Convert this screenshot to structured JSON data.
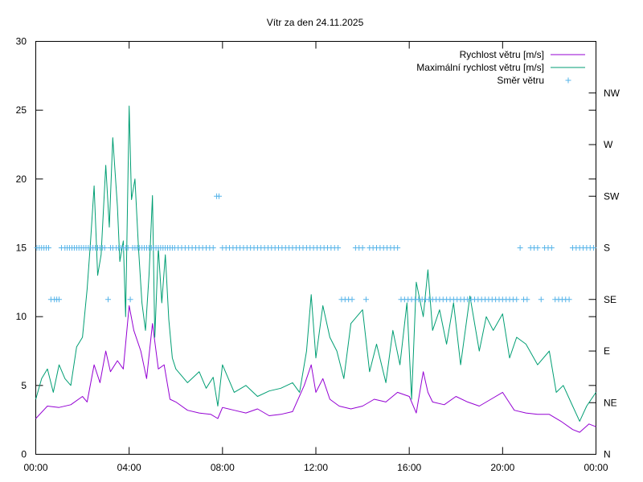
{
  "chart_data": {
    "type": "line",
    "title": "Vítr za den 24.11.2025",
    "x_ticks": [
      "00:00",
      "04:00",
      "08:00",
      "12:00",
      "16:00",
      "20:00",
      "00:00"
    ],
    "x_range_hours": [
      0,
      24
    ],
    "y_ticks": [
      "0",
      "5",
      "10",
      "15",
      "20",
      "25",
      "30"
    ],
    "ylim": [
      0,
      30
    ],
    "y2_ticks": [
      "N",
      "NE",
      "E",
      "SE",
      "S",
      "SW",
      "W",
      "NW"
    ],
    "y2lim": [
      0,
      8
    ],
    "grid": false,
    "legend_position": "top-right",
    "series": [
      {
        "name": "Rychlost větru [m/s]",
        "axis": "y",
        "style": "line",
        "color": "#9400d3",
        "x": [
          0,
          0.5,
          1,
          1.5,
          2,
          2.2,
          2.5,
          2.75,
          3,
          3.2,
          3.5,
          3.75,
          4,
          4.2,
          4.5,
          4.75,
          5,
          5.25,
          5.5,
          5.75,
          6,
          6.5,
          7,
          7.5,
          7.8,
          8,
          8.5,
          9,
          9.5,
          10,
          10.5,
          11,
          11.5,
          11.8,
          12,
          12.3,
          12.6,
          13,
          13.5,
          14,
          14.5,
          15,
          15.5,
          16,
          16.3,
          16.6,
          16.8,
          17,
          17.5,
          18,
          18.5,
          19,
          19.5,
          20,
          20.5,
          21,
          21.5,
          22,
          22.5,
          23,
          23.3,
          23.7,
          24
        ],
        "values": [
          2.6,
          3.5,
          3.4,
          3.6,
          4.2,
          3.8,
          6.5,
          5.2,
          7.5,
          6.0,
          6.8,
          6.2,
          10.8,
          9.0,
          7.5,
          5.5,
          9.5,
          6.2,
          6.5,
          4.0,
          3.8,
          3.2,
          3.0,
          2.9,
          2.6,
          3.4,
          3.2,
          3.0,
          3.3,
          2.8,
          2.9,
          3.1,
          5.0,
          6.5,
          4.5,
          5.5,
          4.0,
          3.5,
          3.3,
          3.5,
          4.0,
          3.8,
          4.5,
          4.2,
          3.0,
          6.0,
          4.5,
          3.8,
          3.6,
          4.2,
          3.8,
          3.5,
          4.0,
          4.5,
          3.2,
          3.0,
          2.9,
          2.9,
          2.4,
          1.8,
          1.6,
          2.2,
          2.0
        ]
      },
      {
        "name": "Maximální rychlost větru [m/s]",
        "axis": "y",
        "style": "line",
        "color": "#009e73",
        "x": [
          0,
          0.25,
          0.5,
          0.75,
          1,
          1.25,
          1.5,
          1.75,
          2,
          2.2,
          2.35,
          2.5,
          2.65,
          2.8,
          3,
          3.15,
          3.3,
          3.5,
          3.6,
          3.75,
          3.85,
          4,
          4.1,
          4.25,
          4.4,
          4.55,
          4.7,
          4.85,
          5,
          5.1,
          5.25,
          5.4,
          5.55,
          5.7,
          5.85,
          6,
          6.5,
          7,
          7.3,
          7.6,
          7.8,
          8,
          8.5,
          9,
          9.5,
          10,
          10.5,
          11,
          11.3,
          11.6,
          11.8,
          12,
          12.3,
          12.6,
          12.9,
          13.2,
          13.5,
          14,
          14.3,
          14.6,
          15,
          15.3,
          15.6,
          15.9,
          16.1,
          16.3,
          16.6,
          16.8,
          17,
          17.3,
          17.6,
          17.9,
          18.2,
          18.6,
          19,
          19.3,
          19.6,
          20,
          20.3,
          20.6,
          21,
          21.5,
          22,
          22.3,
          22.6,
          23,
          23.3,
          23.6,
          24
        ],
        "values": [
          4.0,
          5.5,
          6.2,
          4.5,
          6.5,
          5.5,
          5.0,
          7.8,
          8.5,
          12.0,
          15.5,
          19.5,
          13.0,
          14.5,
          21.0,
          16.5,
          23.0,
          18.0,
          14.0,
          15.5,
          10.0,
          25.3,
          18.5,
          20.0,
          15.0,
          11.0,
          9.0,
          13.0,
          18.8,
          8.5,
          15.0,
          11.0,
          14.5,
          9.8,
          7.0,
          6.2,
          5.2,
          6.0,
          4.8,
          5.6,
          3.5,
          6.5,
          4.5,
          5.0,
          4.2,
          4.6,
          4.8,
          5.2,
          4.5,
          7.5,
          11.6,
          7.0,
          10.8,
          8.5,
          7.5,
          5.5,
          9.5,
          10.5,
          6.0,
          8.0,
          5.2,
          9.0,
          6.5,
          11.0,
          4.0,
          12.5,
          10.0,
          13.4,
          9.0,
          10.5,
          8.0,
          11.0,
          6.5,
          11.5,
          7.5,
          10.0,
          9.0,
          10.2,
          7.0,
          8.5,
          8.0,
          6.5,
          7.5,
          4.5,
          5.0,
          3.5,
          2.4,
          3.5,
          4.5
        ]
      },
      {
        "name": "Směr větru",
        "axis": "y2",
        "style": "points",
        "color": "#56b4e9",
        "x": [
          0.05,
          0.15,
          0.25,
          0.35,
          0.45,
          0.55,
          0.65,
          0.8,
          0.9,
          1.0,
          1.1,
          1.25,
          1.35,
          1.45,
          1.55,
          1.65,
          1.75,
          1.85,
          1.95,
          2.05,
          2.15,
          2.25,
          2.35,
          2.45,
          2.55,
          2.65,
          2.75,
          2.85,
          2.95,
          3.1,
          3.2,
          3.3,
          3.45,
          3.55,
          3.65,
          3.75,
          3.85,
          3.95,
          4.05,
          4.15,
          4.25,
          4.35,
          4.45,
          4.55,
          4.65,
          4.75,
          4.85,
          4.95,
          5.05,
          5.15,
          5.25,
          5.35,
          5.45,
          5.55,
          5.65,
          5.75,
          5.85,
          5.95,
          6.1,
          6.25,
          6.4,
          6.55,
          6.7,
          6.85,
          7.0,
          7.15,
          7.3,
          7.45,
          7.6,
          7.75,
          7.85,
          8.0,
          8.15,
          8.3,
          8.45,
          8.6,
          8.75,
          8.9,
          9.05,
          9.2,
          9.35,
          9.5,
          9.65,
          9.8,
          9.95,
          10.1,
          10.25,
          10.4,
          10.55,
          10.7,
          10.85,
          11.0,
          11.15,
          11.3,
          11.45,
          11.6,
          11.75,
          11.9,
          12.05,
          12.2,
          12.35,
          12.5,
          12.65,
          12.8,
          12.95,
          13.1,
          13.25,
          13.4,
          13.55,
          13.7,
          13.85,
          14.0,
          14.15,
          14.3,
          14.45,
          14.6,
          14.75,
          14.9,
          15.05,
          15.2,
          15.35,
          15.5,
          15.65,
          15.8,
          15.95,
          16.1,
          16.25,
          16.4,
          16.55,
          16.7,
          16.85,
          17.0,
          17.15,
          17.3,
          17.45,
          17.6,
          17.75,
          17.9,
          18.05,
          18.2,
          18.35,
          18.5,
          18.65,
          18.8,
          18.95,
          19.1,
          19.25,
          19.4,
          19.55,
          19.7,
          19.85,
          20.0,
          20.15,
          20.3,
          20.45,
          20.6,
          20.75,
          20.9,
          21.05,
          21.2,
          21.35,
          21.5,
          21.65,
          21.8,
          21.95,
          22.1,
          22.25,
          22.4,
          22.55,
          22.7,
          22.85,
          23.0,
          23.15,
          23.3,
          23.45,
          23.6,
          23.75,
          23.9
        ],
        "values": [
          4,
          4,
          4,
          4,
          4,
          4,
          3,
          3,
          3,
          3,
          4,
          4,
          4,
          4,
          4,
          4,
          4,
          4,
          4,
          4,
          4,
          4,
          4,
          4,
          4,
          4,
          4,
          4,
          4,
          3,
          4,
          4,
          4,
          4,
          4,
          4,
          4,
          4,
          3,
          4,
          4,
          4,
          4,
          4,
          4,
          4,
          4,
          4,
          4,
          4,
          4,
          4,
          4,
          4,
          4,
          4,
          4,
          4,
          4,
          4,
          4,
          4,
          4,
          4,
          4,
          4,
          4,
          4,
          4,
          5,
          5,
          4,
          4,
          4,
          4,
          4,
          4,
          4,
          4,
          4,
          4,
          4,
          4,
          4,
          4,
          4,
          4,
          4,
          4,
          4,
          4,
          4,
          4,
          4,
          4,
          4,
          4,
          4,
          4,
          4,
          4,
          4,
          4,
          4,
          4,
          3,
          3,
          3,
          3,
          4,
          4,
          4,
          3,
          4,
          4,
          4,
          4,
          4,
          4,
          4,
          4,
          4,
          3,
          3,
          3,
          3,
          3,
          3,
          3,
          3,
          3,
          3,
          3,
          3,
          3,
          3,
          3,
          3,
          3,
          3,
          3,
          3,
          3,
          3,
          3,
          3,
          3,
          3,
          3,
          3,
          3,
          3,
          3,
          3,
          3,
          3,
          4,
          3,
          3,
          4,
          4,
          4,
          3,
          4,
          4,
          4,
          3,
          3,
          3,
          3,
          3,
          4,
          4,
          4,
          4,
          4,
          4,
          4
        ]
      }
    ]
  }
}
